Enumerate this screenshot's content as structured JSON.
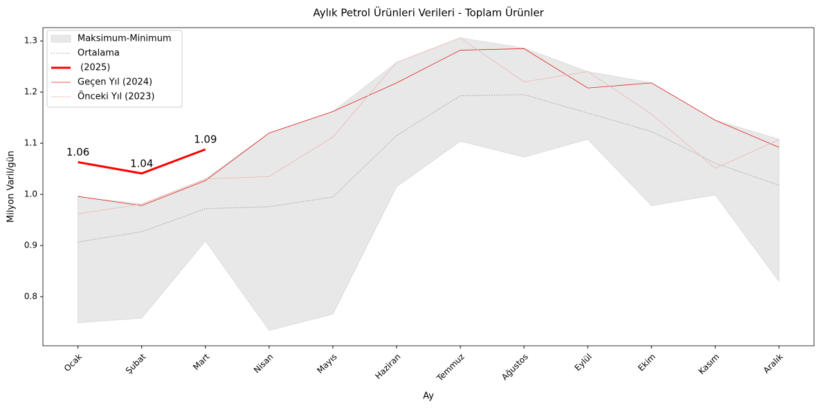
{
  "chart_data": {
    "type": "line",
    "title": "Aylık Petrol Ürünleri Verileri - Toplam Ürünler",
    "xlabel": "Ay",
    "ylabel": "Milyon Varil/gün",
    "categories": [
      "Ocak",
      "Şubat",
      "Mart",
      "Nisan",
      "Mayıs",
      "Haziran",
      "Temmuz",
      "Ağustos",
      "Eylül",
      "Ekim",
      "Kasım",
      "Aralık"
    ],
    "band": {
      "name": "Maksimum-Minimum",
      "color": "#e8e8e8",
      "upper": [
        0.996,
        0.981,
        1.03,
        1.12,
        1.162,
        1.258,
        1.306,
        1.286,
        1.24,
        1.218,
        1.145,
        1.108
      ],
      "lower": [
        0.749,
        0.758,
        0.909,
        0.734,
        0.766,
        1.015,
        1.104,
        1.073,
        1.108,
        0.978,
        0.999,
        0.83
      ]
    },
    "series": [
      {
        "name": "Ortalama",
        "color": "#999999",
        "width": 1,
        "dash": "1.5 2",
        "values": [
          0.907,
          0.927,
          0.972,
          0.976,
          0.995,
          1.115,
          1.193,
          1.195,
          1.159,
          1.123,
          1.061,
          1.018
        ]
      },
      {
        "name": " (2025)",
        "color": "#ff0000",
        "width": 3,
        "values": [
          1.063,
          1.041,
          1.088,
          null,
          null,
          null,
          null,
          null,
          null,
          null,
          null,
          null
        ],
        "value_labels": [
          "1.06",
          "1.04",
          "1.09",
          null,
          null,
          null,
          null,
          null,
          null,
          null,
          null,
          null
        ]
      },
      {
        "name": "Geçen Yıl (2024)",
        "color": "#e0201a",
        "width": 0.8,
        "values": [
          0.996,
          0.978,
          1.027,
          1.12,
          1.162,
          1.218,
          1.282,
          1.285,
          1.208,
          1.218,
          1.145,
          1.092
        ]
      },
      {
        "name": "Önceki Yıl (2023)",
        "color": "#f2b3b3",
        "width": 0.8,
        "values": [
          0.962,
          0.981,
          1.03,
          1.035,
          1.112,
          1.258,
          1.306,
          1.22,
          1.24,
          1.157,
          1.051,
          1.107
        ]
      }
    ],
    "ylim": [
      0.704,
      1.326
    ],
    "yticks": [
      0.8,
      0.9,
      {
        "value": 1,
        "label": "1.0"
      },
      1.1,
      1.2,
      1.3
    ],
    "legend": "upper left"
  }
}
